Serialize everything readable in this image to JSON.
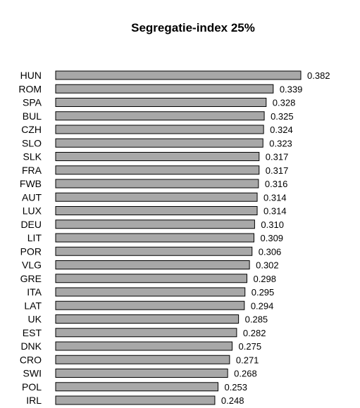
{
  "chart_data": {
    "type": "bar",
    "orientation": "horizontal",
    "title": "Segregatie-index 25%",
    "xlabel": "",
    "ylabel": "",
    "xlim": [
      0,
      0.382
    ],
    "grid": false,
    "bar_color": "#a8a8a8",
    "categories": [
      "HUN",
      "ROM",
      "SPA",
      "BUL",
      "CZH",
      "SLO",
      "SLK",
      "FRA",
      "FWB",
      "AUT",
      "LUX",
      "DEU",
      "LIT",
      "POR",
      "VLG",
      "GRE",
      "ITA",
      "LAT",
      "UK",
      "EST",
      "DNK",
      "CRO",
      "SWI",
      "POL",
      "IRL"
    ],
    "values": [
      0.382,
      0.339,
      0.328,
      0.325,
      0.324,
      0.323,
      0.317,
      0.317,
      0.316,
      0.314,
      0.314,
      0.31,
      0.309,
      0.306,
      0.302,
      0.298,
      0.295,
      0.294,
      0.285,
      0.282,
      0.275,
      0.271,
      0.268,
      0.253,
      0.248
    ],
    "value_labels": [
      "0.382",
      "0.339",
      "0.328",
      "0.325",
      "0.324",
      "0.323",
      "0.317",
      "0.317",
      "0.316",
      "0.314",
      "0.314",
      "0.310",
      "0.309",
      "0.306",
      "0.302",
      "0.298",
      "0.295",
      "0.294",
      "0.285",
      "0.282",
      "0.275",
      "0.271",
      "0.268",
      "0.253",
      "0.248"
    ]
  }
}
